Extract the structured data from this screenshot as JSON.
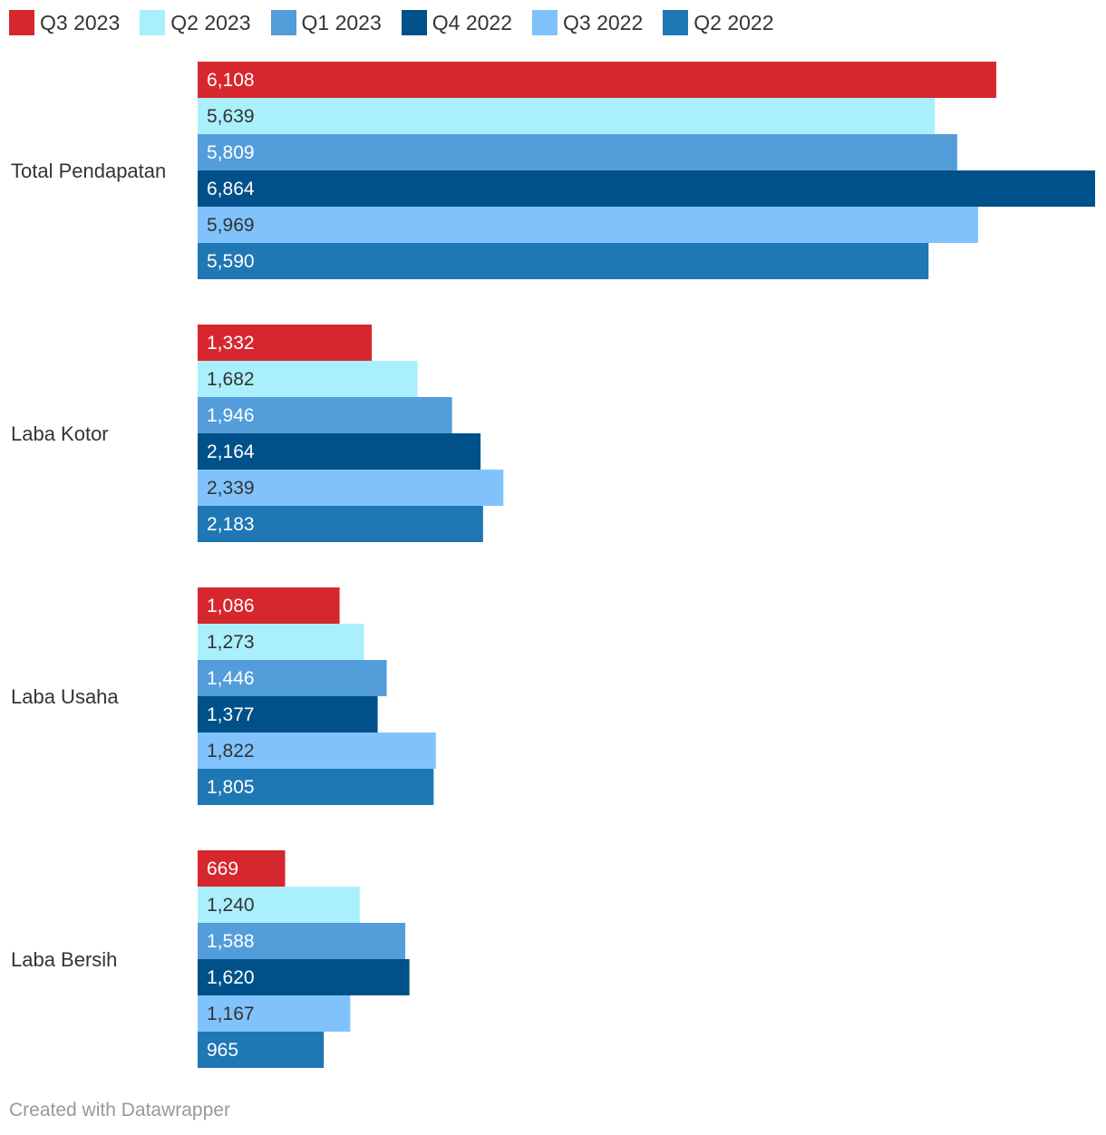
{
  "chart_data": {
    "type": "bar",
    "orientation": "horizontal",
    "categories": [
      "Total Pendapatan",
      "Laba Kotor",
      "Laba Usaha",
      "Laba Bersih"
    ],
    "series": [
      {
        "name": "Q3 2023",
        "color": "#d7272e",
        "values": [
          6108,
          1332,
          1086,
          669
        ],
        "labels": [
          "6,108",
          "1,332",
          "1,086",
          "669"
        ]
      },
      {
        "name": "Q2 2023",
        "color": "#aaf0fc",
        "values": [
          5639,
          1682,
          1273,
          1240
        ],
        "labels": [
          "5,639",
          "1,682",
          "1,273",
          "1,240"
        ]
      },
      {
        "name": "Q1 2023",
        "color": "#529dda",
        "values": [
          5809,
          1946,
          1446,
          1588
        ],
        "labels": [
          "5,809",
          "1,946",
          "1,446",
          "1,588"
        ]
      },
      {
        "name": "Q4 2022",
        "color": "#005189",
        "values": [
          6864,
          2164,
          1377,
          1620
        ],
        "labels": [
          "6,864",
          "2,164",
          "1,377",
          "1,620"
        ]
      },
      {
        "name": "Q3 2022",
        "color": "#80c3fc",
        "values": [
          5969,
          2339,
          1822,
          1167
        ],
        "labels": [
          "5,969",
          "2,339",
          "1,822",
          "1,167"
        ]
      },
      {
        "name": "Q2 2022",
        "color": "#1f77b4",
        "values": [
          5590,
          2183,
          1805,
          965
        ],
        "labels": [
          "5,590",
          "2,183",
          "1,805",
          "965"
        ]
      }
    ],
    "xlim": [
      0,
      6864
    ],
    "legend": "top-left",
    "grid": false,
    "title": "",
    "xlabel": "",
    "ylabel": ""
  },
  "footer": {
    "credit": "Created with Datawrapper"
  },
  "colors": {
    "text": "#333333",
    "label_light": "#ffffff",
    "label_dark": "#333333",
    "credit": "#999999"
  }
}
